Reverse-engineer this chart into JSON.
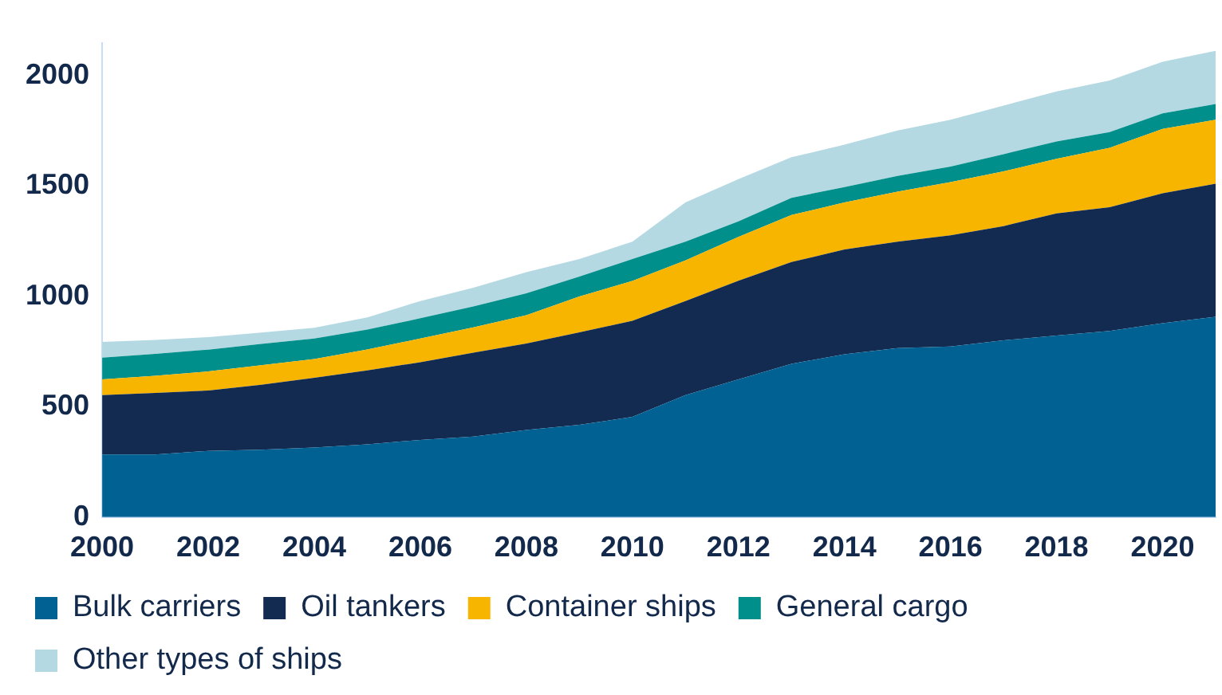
{
  "chart_data": {
    "type": "area",
    "stacked": true,
    "x": [
      2000,
      2001,
      2002,
      2003,
      2004,
      2005,
      2006,
      2007,
      2008,
      2009,
      2010,
      2011,
      2012,
      2013,
      2014,
      2015,
      2016,
      2017,
      2018,
      2019,
      2020,
      2021
    ],
    "series": [
      {
        "name": "Bulk carriers",
        "color": "#006192",
        "values": [
          284,
          284,
          300,
          305,
          315,
          330,
          350,
          365,
          395,
          418,
          454,
          553,
          624,
          695,
          738,
          766,
          773,
          801,
          823,
          844,
          879,
          908
        ]
      },
      {
        "name": "Oil tankers",
        "color": "#132b50",
        "values": [
          269,
          279,
          274,
          295,
          316,
          335,
          352,
          380,
          392,
          419,
          436,
          426,
          447,
          461,
          475,
          482,
          504,
          518,
          553,
          560,
          589,
          603
        ]
      },
      {
        "name": "Container ships",
        "color": "#f8b500",
        "values": [
          71,
          77,
          86,
          88,
          85,
          95,
          107,
          115,
          128,
          163,
          180,
          184,
          199,
          213,
          213,
          227,
          241,
          248,
          248,
          270,
          291,
          290
        ]
      },
      {
        "name": "General cargo",
        "color": "#008f8a",
        "values": [
          99,
          100,
          99,
          97,
          93,
          90,
          92,
          95,
          99,
          90,
          100,
          85,
          70,
          78,
          70,
          71,
          71,
          78,
          78,
          71,
          71,
          71
        ]
      },
      {
        "name": "Other types of ships",
        "color": "#b5d9e3",
        "values": [
          71,
          63,
          57,
          51,
          49,
          55,
          78,
          85,
          96,
          80,
          78,
          178,
          192,
          184,
          192,
          206,
          212,
          220,
          227,
          234,
          234,
          241
        ]
      }
    ],
    "xlim": [
      2000,
      2021
    ],
    "xticks": [
      2000,
      2002,
      2004,
      2006,
      2008,
      2010,
      2012,
      2014,
      2016,
      2018,
      2020
    ],
    "ylim": [
      0,
      2150
    ],
    "yticks": [
      0,
      500,
      1000,
      1500,
      2000
    ],
    "grid": false,
    "legend": "bottom"
  }
}
